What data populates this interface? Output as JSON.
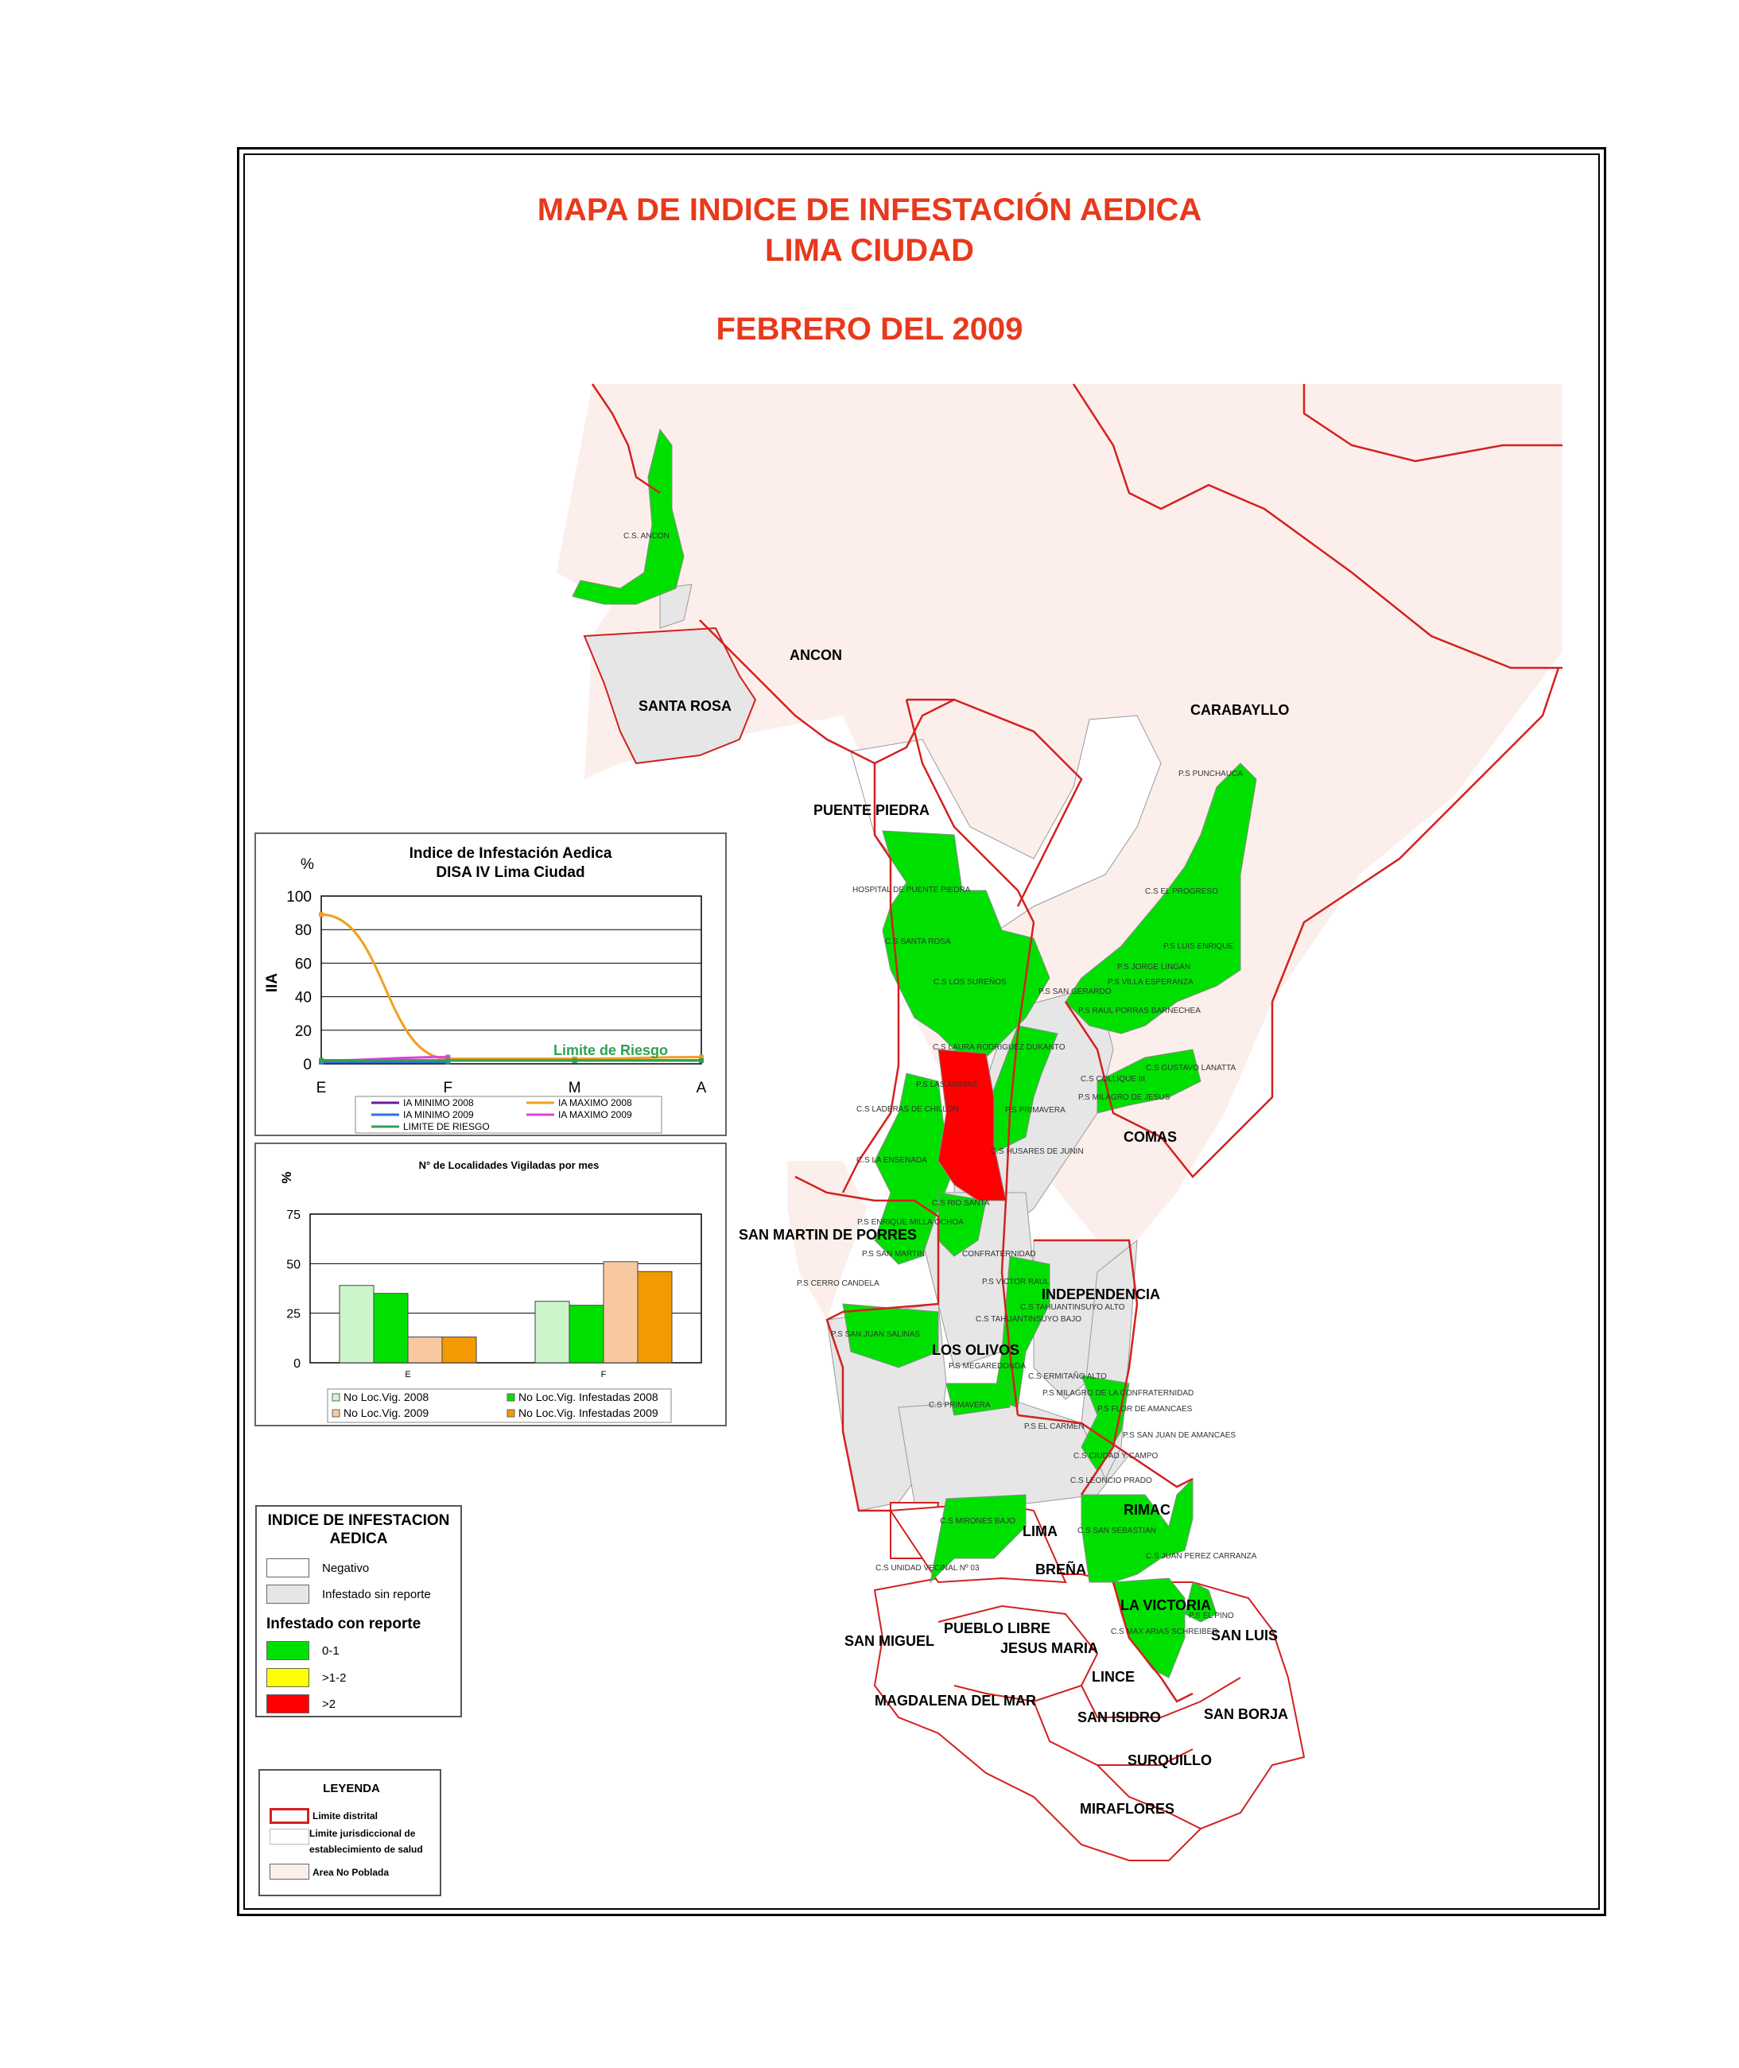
{
  "title": {
    "line1": "MAPA DE INDICE DE INFESTACIÓN AEDICA",
    "line2": "LIMA CIUDAD",
    "line3": "FEBRERO DEL 2009"
  },
  "colors": {
    "title": "#e8391c",
    "negative": "#ffffff",
    "unreported": "#e6e6e6",
    "low": "#00e000",
    "mid": "#ffff00",
    "high": "#ff0000",
    "boundary": "#d42020",
    "unpopulated": "#fcefeb"
  },
  "districts": {
    "ancon": "ANCON",
    "santa_rosa": "SANTA ROSA",
    "carabayllo": "CARABAYLLO",
    "puente_piedra": "PUENTE PIEDRA",
    "comas": "COMAS",
    "san_martin": "SAN MARTIN DE PORRES",
    "independencia": "INDEPENDENCIA",
    "los_olivos": "LOS OLIVOS",
    "rimac": "RIMAC",
    "lima": "LIMA",
    "brena": "BREÑA",
    "la_victoria": "LA VICTORIA",
    "san_luis": "SAN LUIS",
    "pueblo_libre": "PUEBLO LIBRE",
    "san_miguel": "SAN MIGUEL",
    "jesus_maria": "JESUS MARIA",
    "lince": "LINCE",
    "magdalena": "MAGDALENA DEL MAR",
    "san_isidro": "SAN ISIDRO",
    "san_borja": "SAN BORJA",
    "surquillo": "SURQUILLO",
    "miraflores": "MIRAFLORES"
  },
  "centers": {
    "c01": "C.S. ANCON",
    "c02": "P.S PUNCHAUCA",
    "c03": "HOSPITAL DE PUENTE PIEDRA",
    "c04": "C.S EL PROGRESO",
    "c05": "C.S SANTA ROSA",
    "c06": "P.S LUIS ENRIQUE",
    "c07": "P.S JORGE LINGAN",
    "c08": "C.S LOS SUREÑOS",
    "c09": "P.S SAN GERARDO",
    "c10": "P.S VILLA ESPERANZA",
    "c11": "P.S RAUL PORRAS BARNECHEA",
    "c12": "C.S LAURA RODRIGUEZ DUKANTO",
    "c13": "C.S GUSTAVO LANATTA",
    "c14": "C.S COLLIQUE III",
    "c15": "P.S LAS ANIMAS",
    "c16": "P.S MILAGRO DE JESUS",
    "c17": "C.S LADERAS DE CHILLON",
    "c18": "P.S PRIMAVERA",
    "c19": "C.S HUSARES DE JUNIN",
    "c20": "C.S LA ENSENADA",
    "c21": "C.S RIO SANTA",
    "c22": "P.S ENRIQUE MILLA OCHOA",
    "c23": "P.S SAN MARTIN",
    "c24": "CONFRATERNIDAD",
    "c25": "P.S CERRO CANDELA",
    "c26": "P.S VICTOR RAUL",
    "c27": "C.S TAHUANTINSUYO ALTO",
    "c28": "C.S TAHUANTINSUYO BAJO",
    "c29": "P.S SAN JUAN SALINAS",
    "c30": "P.S MEGAREDONDA",
    "c31": "C.S ERMITAÑO ALTO",
    "c32": "P.S MILAGRO DE LA CONFRATERNIDAD",
    "c33": "C.S PRIMAVERA",
    "c34": "P.S FLOR DE AMANCAES",
    "c35": "P.S EL CARMEN",
    "c36": "P.S SAN JUAN DE AMANCAES",
    "c37": "C.S CIUDAD Y CAMPO",
    "c38": "C.S LEONCIO PRADO",
    "c39": "C.S MIRONES BAJO",
    "c40": "C.S SAN SEBASTIAN",
    "c41": "C.S JUAN PEREZ CARRANZA",
    "c42": "C.S UNIDAD VECINAL Nº 03",
    "c43": "P.S EL PINO",
    "c44": "C.S MAX ARIAS SCHREIBER"
  },
  "line_chart": {
    "title1": "Indice de Infestación Aedica",
    "title2": "DISA IV Lima Ciudad",
    "ylabel": "IIA",
    "unit": "%",
    "y_ticks": [
      "100",
      "80",
      "60",
      "40",
      "20",
      "0"
    ],
    "x_ticks": [
      "E",
      "F",
      "M",
      "A"
    ],
    "risk_label": "Limite de Riesgo",
    "legend": {
      "l1": "IA MINIMO 2008",
      "l2": "IA MAXIMO 2008",
      "l3": "IA MINIMO 2009",
      "l4": "IA MAXIMO 2009",
      "l5": "LIMITE DE RIESGO"
    }
  },
  "bar_chart": {
    "title": "N° de Localidades Vigiladas por mes",
    "unit": "%",
    "y_ticks": [
      "75",
      "50",
      "25",
      "0"
    ],
    "categories": [
      "E",
      "F"
    ],
    "legend": {
      "l1": "No Loc.Vig. 2008",
      "l2": "No Loc.Vig. Infestadas 2008",
      "l3": "No Loc.Vig. 2009",
      "l4": "No Loc.Vig. Infestadas 2009"
    }
  },
  "chart_data": [
    {
      "type": "line",
      "title": "Indice de Infestación Aedica DISA IV Lima Ciudad",
      "ylabel": "IIA",
      "x": [
        "E",
        "F",
        "M",
        "A"
      ],
      "ylim": [
        0,
        100
      ],
      "series": [
        {
          "name": "IA MINIMO 2008",
          "color": "#6a1b9a",
          "values": [
            2,
            2,
            2,
            2
          ]
        },
        {
          "name": "IA MAXIMO 2008",
          "color": "#f0a020",
          "values": [
            89,
            3,
            3,
            4
          ]
        },
        {
          "name": "IA MINIMO 2009",
          "color": "#3070e0",
          "values": [
            1,
            1,
            null,
            null
          ]
        },
        {
          "name": "IA MAXIMO 2009",
          "color": "#e040e0",
          "values": [
            2,
            4,
            null,
            null
          ]
        },
        {
          "name": "LIMITE DE RIESGO",
          "color": "#30a050",
          "values": [
            2,
            2,
            2,
            2
          ]
        }
      ],
      "annotations": [
        "Limite de Riesgo"
      ]
    },
    {
      "type": "bar",
      "title": "N° de Localidades Vigiladas por mes",
      "categories": [
        "E",
        "F"
      ],
      "ylim": [
        0,
        75
      ],
      "series": [
        {
          "name": "No Loc.Vig. 2008",
          "color": "#ccf5cc",
          "values": [
            39,
            31
          ]
        },
        {
          "name": "No Loc.Vig. Infestadas 2008",
          "color": "#00e000",
          "values": [
            35,
            29
          ]
        },
        {
          "name": "No Loc.Vig. 2009",
          "color": "#f8c8a0",
          "values": [
            13,
            51
          ]
        },
        {
          "name": "No Loc.Vig. Infestadas 2009",
          "color": "#f39a00",
          "values": [
            13,
            46
          ]
        }
      ]
    }
  ],
  "legend_index": {
    "title1": "INDICE DE INFESTACION",
    "title2": "AEDICA",
    "negative": "Negativo",
    "unreported": "Infestado sin reporte",
    "reported": "Infestado con reporte",
    "low": "0-1",
    "mid": ">1-2",
    "high": ">2"
  },
  "legend_main": {
    "title": "LEYENDA",
    "district_limit": "Limite distrital",
    "jurisdiction1": "Limite jurisdiccional de",
    "jurisdiction2": "establecimiento de salud",
    "unpopulated": "Area No Poblada"
  }
}
